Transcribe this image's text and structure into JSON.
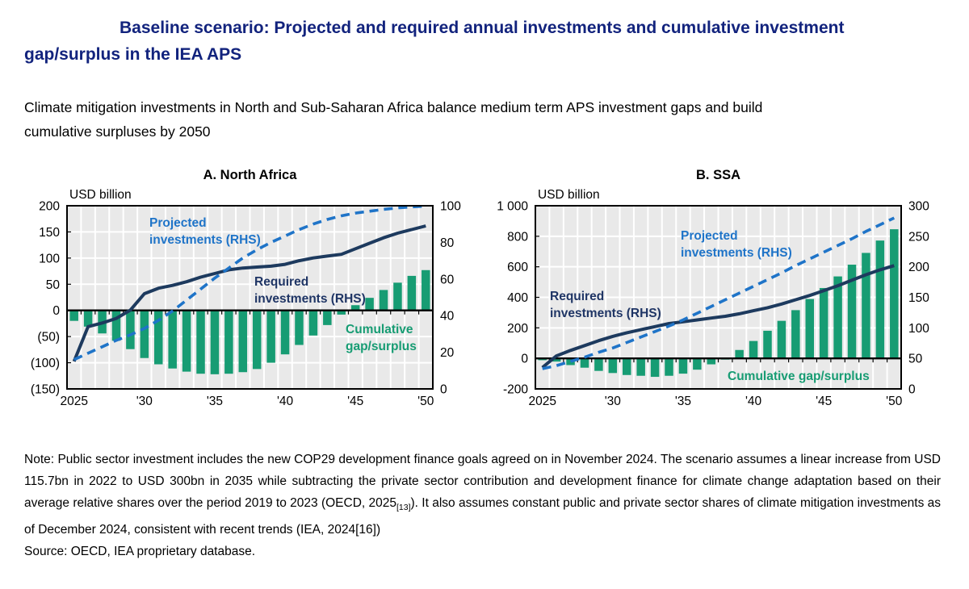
{
  "header": {
    "title": "Baseline scenario: Projected and required annual investments and cumulative investment gap/surplus in the IEA APS",
    "subtitle": "Climate mitigation investments in North and Sub-Saharan Africa balance medium term APS investment gaps and build cumulative surpluses by 2050"
  },
  "footer": {
    "note_prefix": "Note: Public sector investment includes the new COP29 development finance goals agreed on in November 2024. The scenario assumes a linear increase from USD 115.7bn in 2022 to USD 300bn in 2035 while subtracting the private sector contribution and development finance for climate change adaptation based on their average relative shares over the period 2019 to 2023 (OECD, 2025",
    "note_ref_sub": "[13]",
    "note_mid": "). It also assumes constant public and private sector shares of climate mitigation investments as of December 2024, consistent with recent trends (IEA, 2024[16])",
    "source": "Source: OECD, IEA proprietary database."
  },
  "colors": {
    "title": "#12237d",
    "navy": "#1d3a5e",
    "navy_text": "#1f3565",
    "blue": "#1f74c8",
    "green": "#179c73",
    "plot_bg": "#e9e9e9",
    "grid": "#ffffff",
    "axis": "#000000"
  },
  "chart_data": [
    {
      "type": "bar",
      "title": "A. North Africa",
      "unit_label": "USD billion",
      "years": [
        2025,
        2026,
        2027,
        2028,
        2029,
        2030,
        2031,
        2032,
        2033,
        2034,
        2035,
        2036,
        2037,
        2038,
        2039,
        2040,
        2041,
        2042,
        2043,
        2044,
        2045,
        2046,
        2047,
        2048,
        2049,
        2050
      ],
      "x_ticks": [
        {
          "year": 2025,
          "label": "2025"
        },
        {
          "year": 2030,
          "label": "'30"
        },
        {
          "year": 2035,
          "label": "'35"
        },
        {
          "year": 2040,
          "label": "'40"
        },
        {
          "year": 2045,
          "label": "'45"
        },
        {
          "year": 2050,
          "label": "'50"
        }
      ],
      "left_axis": {
        "min": -150,
        "max": 200,
        "ticks": [
          {
            "v": 200,
            "label": "200"
          },
          {
            "v": 150,
            "label": "150"
          },
          {
            "v": 100,
            "label": "100"
          },
          {
            "v": 50,
            "label": "50"
          },
          {
            "v": 0,
            "label": "0"
          },
          {
            "v": -50,
            "label": "(50)"
          },
          {
            "v": -100,
            "label": "(100)"
          },
          {
            "v": -150,
            "label": "(150)"
          }
        ]
      },
      "right_axis": {
        "min": 0,
        "max": 100,
        "ticks": [
          {
            "v": 100,
            "label": "100"
          },
          {
            "v": 80,
            "label": "80"
          },
          {
            "v": 60,
            "label": "60"
          },
          {
            "v": 40,
            "label": "40"
          },
          {
            "v": 20,
            "label": "20"
          },
          {
            "v": 0,
            "label": "0"
          }
        ]
      },
      "bars": {
        "name": "Cumulative gap/surplus",
        "axis": "left",
        "color_key": "green",
        "values": [
          -20,
          -31,
          -44,
          -58,
          -74,
          -91,
          -103,
          -111,
          -117,
          -121,
          -122,
          -121,
          -118,
          -112,
          -100,
          -84,
          -66,
          -48,
          -28,
          -8,
          10,
          24,
          39,
          53,
          66,
          77
        ]
      },
      "lines": [
        {
          "id": "required-investments-line",
          "name": "Required investments (RHS)",
          "axis": "right",
          "style": "solid",
          "color_key": "navy",
          "values": [
            15,
            34,
            36,
            38.5,
            43,
            52,
            55,
            56.5,
            58.5,
            61,
            63,
            65,
            66,
            66.5,
            67,
            68,
            70,
            71.5,
            72.5,
            73.5,
            76.5,
            79.5,
            82.5,
            85,
            87,
            89
          ]
        },
        {
          "id": "projected-investments-line",
          "name": "Projected investments (RHS)",
          "axis": "right",
          "style": "dashed",
          "color_key": "blue",
          "values": [
            16,
            19.5,
            23,
            26.5,
            29.5,
            33,
            37.5,
            42.5,
            48.5,
            54.5,
            60.5,
            66,
            71.5,
            76,
            80,
            83.5,
            87,
            90,
            92.5,
            94.5,
            96,
            97,
            98,
            98.8,
            99.4,
            99.8
          ]
        }
      ],
      "annotations": [
        {
          "id": "projected-investments-label",
          "color_key": "blue",
          "x": 165,
          "y": 76,
          "lines": [
            "Projected",
            "investments (RHS)"
          ]
        },
        {
          "id": "required-investments-label",
          "color_key": "navy_text",
          "x": 295,
          "y": 149,
          "lines": [
            "Required",
            "investments (RHS)"
          ]
        },
        {
          "id": "cumulative-gap-surplus-label",
          "color_key": "green",
          "x": 408,
          "y": 208,
          "lines": [
            "Cumulative",
            "gap/surplus"
          ]
        }
      ]
    },
    {
      "type": "bar",
      "title": "B. SSA",
      "unit_label": "USD billion",
      "years": [
        2025,
        2026,
        2027,
        2028,
        2029,
        2030,
        2031,
        2032,
        2033,
        2034,
        2035,
        2036,
        2037,
        2038,
        2039,
        2040,
        2041,
        2042,
        2043,
        2044,
        2045,
        2046,
        2047,
        2048,
        2049,
        2050
      ],
      "x_ticks": [
        {
          "year": 2025,
          "label": "2025"
        },
        {
          "year": 2030,
          "label": "'30"
        },
        {
          "year": 2035,
          "label": "'35"
        },
        {
          "year": 2040,
          "label": "'40"
        },
        {
          "year": 2045,
          "label": "'45"
        },
        {
          "year": 2050,
          "label": "'50"
        }
      ],
      "left_axis": {
        "min": -200,
        "max": 1000,
        "ticks": [
          {
            "v": 1000,
            "label": "1 000"
          },
          {
            "v": 800,
            "label": "800"
          },
          {
            "v": 600,
            "label": "600"
          },
          {
            "v": 400,
            "label": "400"
          },
          {
            "v": 200,
            "label": "200"
          },
          {
            "v": 0,
            "label": "0"
          },
          {
            "v": -200,
            "label": "-200"
          }
        ]
      },
      "right_axis": {
        "min": 0,
        "max": 300,
        "ticks": [
          {
            "v": 300,
            "label": "300"
          },
          {
            "v": 250,
            "label": "250"
          },
          {
            "v": 200,
            "label": "200"
          },
          {
            "v": 150,
            "label": "150"
          },
          {
            "v": 100,
            "label": "100"
          },
          {
            "v": 50,
            "label": "50"
          },
          {
            "v": 0,
            "label": "0"
          }
        ]
      },
      "bars": {
        "name": "Cumulative gap/surplus",
        "axis": "left",
        "color_key": "green",
        "values": [
          -12,
          -21,
          -44,
          -61,
          -82,
          -96,
          -109,
          -114,
          -121,
          -114,
          -100,
          -74,
          -39,
          -8,
          55,
          114,
          181,
          246,
          316,
          389,
          461,
          537,
          614,
          691,
          772,
          846
        ]
      },
      "lines": [
        {
          "id": "required-investments-line",
          "name": "Required investments (RHS)",
          "axis": "right",
          "style": "solid",
          "color_key": "navy",
          "values": [
            35,
            54,
            63,
            71,
            79,
            86,
            92,
            97,
            102,
            107,
            110,
            113,
            116,
            119,
            123,
            128,
            133,
            139,
            146,
            153,
            161,
            169,
            178,
            187,
            195,
            202
          ]
        },
        {
          "id": "projected-investments-line",
          "name": "Projected investments (RHS)",
          "axis": "right",
          "style": "dashed",
          "color_key": "blue",
          "values": [
            33,
            38,
            45,
            52,
            60,
            67,
            76,
            85,
            94,
            103,
            113,
            124,
            135,
            146,
            157,
            168,
            179,
            190,
            202,
            213,
            224,
            235,
            246,
            258,
            269,
            280
          ]
        }
      ],
      "annotations": [
        {
          "id": "projected-investments-label",
          "color_key": "blue",
          "x": 243,
          "y": 92,
          "lines": [
            "Projected",
            "investments (RHS)"
          ]
        },
        {
          "id": "required-investments-label",
          "color_key": "navy_text",
          "x": 81,
          "y": 167,
          "lines": [
            "Required",
            "investments (RHS)"
          ]
        },
        {
          "id": "cumulative-gap-surplus-label",
          "color_key": "green",
          "x": 301,
          "y": 266,
          "lines": [
            "Cumulative gap/surplus"
          ]
        }
      ]
    }
  ]
}
